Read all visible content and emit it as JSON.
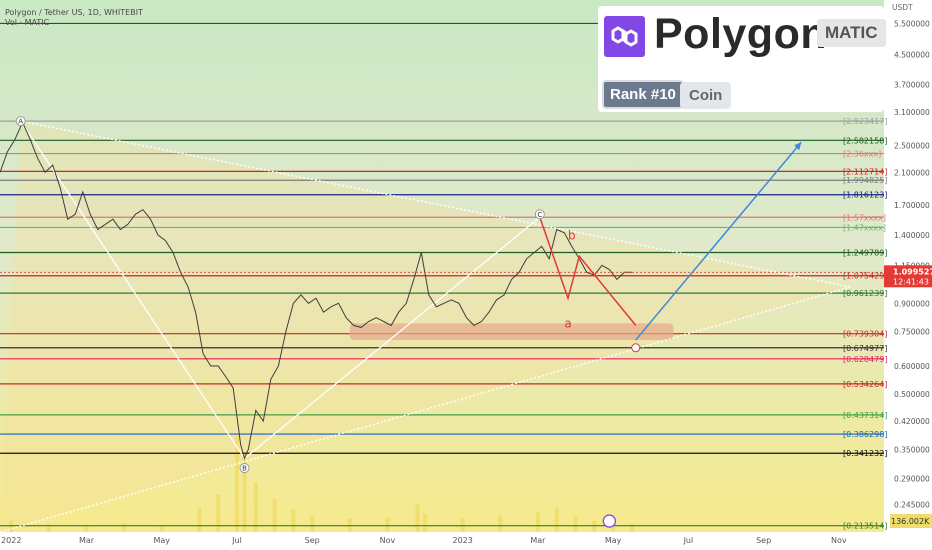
{
  "header": {
    "symbol_line": "Polygon / Tether US, 1D, WHITEBIT",
    "volume_line": "Vol · MATIC"
  },
  "brand_card": {
    "name": "Polygon",
    "ticker": "MATIC",
    "rank": "Rank #10",
    "category": "Coin"
  },
  "chart_data": {
    "type": "line",
    "price_scale": "log",
    "currency_label": "USDT",
    "ylim": [
      0.205,
      6.4
    ],
    "x_axis_ticks": [
      "2022",
      "Mar",
      "May",
      "Jul",
      "Sep",
      "Nov",
      "2023",
      "Mar",
      "May",
      "Jul",
      "Sep",
      "Nov"
    ],
    "x_tick_times": [
      0,
      2,
      4,
      6,
      8,
      10,
      12,
      14,
      16,
      18,
      20,
      22
    ],
    "xlim": [
      -0.3,
      23.2
    ],
    "price_ticks": [
      "5.500000",
      "4.500000",
      "3.700000",
      "3.100000",
      "2.500000",
      "2.100000",
      "1.700000",
      "1.400000",
      "1.150000",
      "0.900000",
      "0.750000",
      "0.600000",
      "0.500000",
      "0.420000",
      "0.350000",
      "0.290000",
      "0.245000"
    ],
    "price_tick_values": [
      5.5,
      4.5,
      3.7,
      3.1,
      2.5,
      2.1,
      1.7,
      1.4,
      1.15,
      0.9,
      0.75,
      0.6,
      0.5,
      0.42,
      0.35,
      0.29,
      0.245
    ],
    "fib_levels": [
      {
        "value": 5.5,
        "label": "",
        "color": "#1b5e20"
      },
      {
        "value": 2.923417,
        "label": "2.923417",
        "color": "#9e9e9e"
      },
      {
        "value": 2.582158,
        "label": "2.582158",
        "color": "#1b5e20"
      },
      {
        "value": 2.37,
        "label": "2.36xxx",
        "color": "#e57373"
      },
      {
        "value": 2.112714,
        "label": "2.112714",
        "color": "#c62828"
      },
      {
        "value": 1.994825,
        "label": "1.994825",
        "color": "#7b7b7b"
      },
      {
        "value": 1.816123,
        "label": "1.816123",
        "color": "#1a237e"
      },
      {
        "value": 1.57,
        "label": "1.57xxxx",
        "color": "#e57373"
      },
      {
        "value": 1.47,
        "label": "1.47xxxx",
        "color": "#66bb6a"
      },
      {
        "value": 1.249789,
        "label": "1.249789",
        "color": "#1b5e20"
      },
      {
        "value": 1.075429,
        "label": "1.075429",
        "color": "#c62828"
      },
      {
        "value": 0.961239,
        "label": "0.961239",
        "color": "#2e7d32"
      },
      {
        "value": 0.739304,
        "label": "0.739304",
        "color": "#c62828"
      },
      {
        "value": 0.674977,
        "label": "0.674977",
        "color": "#333333"
      },
      {
        "value": 0.628479,
        "label": "0.628479",
        "color": "#e91e63"
      },
      {
        "value": 0.534264,
        "label": "0.534264",
        "color": "#c62828"
      },
      {
        "value": 0.437314,
        "label": "0.437314",
        "color": "#43a047"
      },
      {
        "value": 0.386298,
        "label": "0.386298",
        "color": "#1565c0"
      },
      {
        "value": 0.341232,
        "label": "0.341232",
        "color": "#111111"
      },
      {
        "value": 0.213514,
        "label": "0.213514",
        "color": "#2e7d32"
      }
    ],
    "price_series": [
      [
        -0.3,
        2.1
      ],
      [
        -0.1,
        2.4
      ],
      [
        0.1,
        2.6
      ],
      [
        0.3,
        2.9
      ],
      [
        0.5,
        2.6
      ],
      [
        0.7,
        2.3
      ],
      [
        0.9,
        2.1
      ],
      [
        1.1,
        2.2
      ],
      [
        1.3,
        1.9
      ],
      [
        1.5,
        1.55
      ],
      [
        1.7,
        1.6
      ],
      [
        1.9,
        1.85
      ],
      [
        2.1,
        1.6
      ],
      [
        2.3,
        1.45
      ],
      [
        2.5,
        1.5
      ],
      [
        2.7,
        1.55
      ],
      [
        2.9,
        1.45
      ],
      [
        3.1,
        1.5
      ],
      [
        3.3,
        1.6
      ],
      [
        3.5,
        1.65
      ],
      [
        3.7,
        1.55
      ],
      [
        3.9,
        1.4
      ],
      [
        4.1,
        1.35
      ],
      [
        4.3,
        1.25
      ],
      [
        4.5,
        1.1
      ],
      [
        4.7,
        1.0
      ],
      [
        4.9,
        0.85
      ],
      [
        5.1,
        0.65
      ],
      [
        5.3,
        0.6
      ],
      [
        5.5,
        0.6
      ],
      [
        5.7,
        0.56
      ],
      [
        5.9,
        0.52
      ],
      [
        6.1,
        0.36
      ],
      [
        6.2,
        0.33
      ],
      [
        6.3,
        0.35
      ],
      [
        6.5,
        0.45
      ],
      [
        6.7,
        0.42
      ],
      [
        6.9,
        0.55
      ],
      [
        7.1,
        0.6
      ],
      [
        7.3,
        0.75
      ],
      [
        7.5,
        0.9
      ],
      [
        7.7,
        0.95
      ],
      [
        7.9,
        0.9
      ],
      [
        8.1,
        0.93
      ],
      [
        8.3,
        0.85
      ],
      [
        8.5,
        0.88
      ],
      [
        8.7,
        0.9
      ],
      [
        8.9,
        0.82
      ],
      [
        9.1,
        0.78
      ],
      [
        9.3,
        0.77
      ],
      [
        9.5,
        0.8
      ],
      [
        9.7,
        0.82
      ],
      [
        9.9,
        0.8
      ],
      [
        10.1,
        0.78
      ],
      [
        10.3,
        0.85
      ],
      [
        10.5,
        0.9
      ],
      [
        10.7,
        1.05
      ],
      [
        10.9,
        1.25
      ],
      [
        11.1,
        0.95
      ],
      [
        11.3,
        0.88
      ],
      [
        11.5,
        0.9
      ],
      [
        11.7,
        0.92
      ],
      [
        11.9,
        0.9
      ],
      [
        12.1,
        0.82
      ],
      [
        12.3,
        0.78
      ],
      [
        12.5,
        0.8
      ],
      [
        12.7,
        0.85
      ],
      [
        12.9,
        0.92
      ],
      [
        13.1,
        0.95
      ],
      [
        13.3,
        1.05
      ],
      [
        13.5,
        1.1
      ],
      [
        13.7,
        1.2
      ],
      [
        13.9,
        1.25
      ],
      [
        14.1,
        1.3
      ],
      [
        14.3,
        1.2
      ],
      [
        14.5,
        1.45
      ],
      [
        14.7,
        1.42
      ],
      [
        14.9,
        1.3
      ],
      [
        15.1,
        1.2
      ],
      [
        15.3,
        1.1
      ],
      [
        15.5,
        1.08
      ],
      [
        15.7,
        1.15
      ],
      [
        15.9,
        1.12
      ],
      [
        16.1,
        1.05
      ],
      [
        16.3,
        1.1
      ],
      [
        16.5,
        1.0995
      ]
    ],
    "volume_series": [
      [
        0,
        14
      ],
      [
        1,
        10
      ],
      [
        2,
        9
      ],
      [
        3,
        11
      ],
      [
        4,
        8
      ],
      [
        5,
        30
      ],
      [
        5.5,
        45
      ],
      [
        6,
        120
      ],
      [
        6.2,
        95
      ],
      [
        6.5,
        60
      ],
      [
        7,
        40
      ],
      [
        7.5,
        28
      ],
      [
        8,
        20
      ],
      [
        9,
        16
      ],
      [
        10,
        18
      ],
      [
        10.8,
        34
      ],
      [
        11,
        22
      ],
      [
        12,
        16
      ],
      [
        13,
        20
      ],
      [
        14,
        24
      ],
      [
        14.5,
        30
      ],
      [
        15,
        20
      ],
      [
        15.5,
        14
      ],
      [
        16,
        12
      ],
      [
        16.5,
        10
      ]
    ],
    "volume_max": 136,
    "wave_labels": [
      {
        "label": "A",
        "t": 0.25,
        "price": 2.923417
      },
      {
        "label": "B",
        "t": 6.2,
        "price": 0.31
      },
      {
        "label": "C",
        "t": 14.05,
        "price": 1.6
      },
      {
        "label": "b",
        "t": 14.9,
        "price": 1.36,
        "color": "#e53935"
      },
      {
        "label": "a",
        "t": 14.8,
        "price": 0.77,
        "color": "#e53935"
      }
    ],
    "current_price": "1.099527",
    "countdown": "12:41:43",
    "volume_label": "136.002K",
    "axis_unit": "USDT"
  },
  "colors": {
    "accent_red": "#e53935",
    "projection_blue": "#3f87d9",
    "purple": "#8247e5"
  }
}
